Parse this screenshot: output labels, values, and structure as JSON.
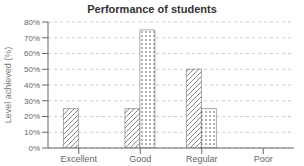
{
  "chart_data": {
    "type": "bar",
    "title": "Performance of students",
    "ylabel": "Level achieved (%)",
    "categories": [
      "Excellent",
      "Good",
      "Regular",
      "Poor"
    ],
    "series": [
      {
        "color": "white",
        "values": [
          25,
          25,
          50,
          0
        ]
      },
      {
        "color": "white",
        "values": [
          0,
          75,
          25,
          0
        ]
      }
    ],
    "ylim": [
      0,
      80
    ],
    "yticks": [
      {
        "value": 0,
        "label": "0%"
      },
      {
        "value": 10,
        "label": "10%"
      },
      {
        "value": 20,
        "label": "20%"
      },
      {
        "value": 30,
        "label": "30%"
      },
      {
        "value": 40,
        "label": "40%"
      },
      {
        "value": 50,
        "label": "50%"
      },
      {
        "value": 60,
        "label": "60%"
      },
      {
        "value": 70,
        "label": "70%"
      },
      {
        "value": 80,
        "label": "80%"
      }
    ],
    "grid": true
  }
}
